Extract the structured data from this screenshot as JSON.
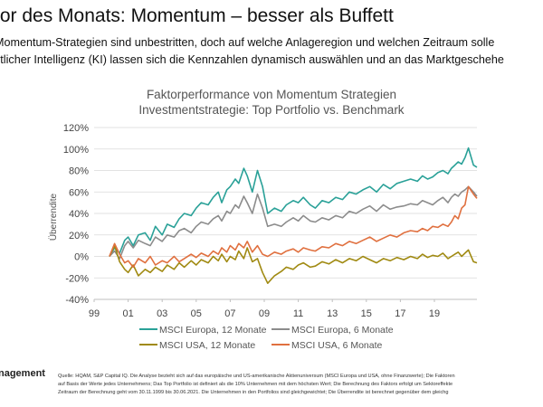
{
  "header": {
    "headline": "tor des Monats: Momentum – besser als Buffett",
    "intro_line1": "Momentum-Strategien sind unbestritten, doch auf welche Anlageregion und welchen Zeitraum solle",
    "intro_line2": "stlicher Intelligenz (KI) lassen sich die Kennzahlen dynamisch auswählen und an das Marktgeschehe"
  },
  "footer": {
    "brand": "nagement",
    "note_line1": "Quelle: HQAM, S&P Capital IQ. Die Analyse bezieht sich auf das europäische und US-amerikanische Aktienuniversum (MSCI Europa und USA, ohne Finanzwerte); Die Faktoren",
    "note_line2": "auf Basis der Werte jedes Unternehmens; Das Top Portfolio ist definiert als die 10% Unternehmen mit dem höchsten Wert; Die Berechnung des Faktors erfolgt um Sektoreffekte",
    "note_line3": "Zeitraum der Berechnung geht vom 30.11.1999 bis 30.06.2021. Die Unternehmen in den Portfolios sind gleichgewichtet; Die Überrendite ist berechnet gegenüber dem gleichg"
  },
  "chart_data": {
    "type": "line",
    "title": "Faktorperformance von Momentum Strategien",
    "subtitle": "Investmentstrategie: Top Portfolio vs. Benchmark",
    "xlabel": "",
    "ylabel": "Überrendite",
    "xlim": [
      1999.0,
      2021.5
    ],
    "ylim": [
      -40,
      120
    ],
    "y_ticks": [
      -40,
      -20,
      0,
      20,
      40,
      60,
      80,
      100,
      120
    ],
    "y_tick_labels": [
      "-40%",
      "-20%",
      "0%",
      "20%",
      "40%",
      "60%",
      "80%",
      "100%",
      "120%"
    ],
    "x_ticks": [
      1999,
      2001,
      2003,
      2005,
      2007,
      2009,
      2011,
      2013,
      2015,
      2017,
      2019
    ],
    "x_tick_labels": [
      "99",
      "01",
      "03",
      "05",
      "07",
      "09",
      "11",
      "13",
      "15",
      "17",
      "19"
    ],
    "grid": true,
    "legend_position": "bottom",
    "series": [
      {
        "name": "MSCI Europa, 12 Monate",
        "color": "#2aa198",
        "x": [
          1999.9,
          2000.2,
          2000.5,
          2000.8,
          2001.0,
          2001.3,
          2001.6,
          2002.0,
          2002.3,
          2002.6,
          2003.0,
          2003.3,
          2003.7,
          2004.0,
          2004.3,
          2004.7,
          2005.0,
          2005.3,
          2005.7,
          2006.0,
          2006.3,
          2006.5,
          2006.8,
          2007.0,
          2007.3,
          2007.5,
          2007.8,
          2008.0,
          2008.3,
          2008.6,
          2008.9,
          2009.2,
          2009.6,
          2010.0,
          2010.3,
          2010.7,
          2011.0,
          2011.3,
          2011.7,
          2012.0,
          2012.4,
          2012.8,
          2013.2,
          2013.6,
          2014.0,
          2014.4,
          2014.8,
          2015.2,
          2015.6,
          2016.0,
          2016.4,
          2016.8,
          2017.2,
          2017.6,
          2018.0,
          2018.3,
          2018.6,
          2018.9,
          2019.2,
          2019.5,
          2019.8,
          2020.0,
          2020.2,
          2020.4,
          2020.6,
          2020.8,
          2021.0,
          2021.3,
          2021.5
        ],
        "values": [
          0,
          8,
          3,
          15,
          18,
          10,
          20,
          22,
          15,
          28,
          20,
          30,
          27,
          35,
          40,
          38,
          45,
          50,
          48,
          55,
          60,
          50,
          62,
          65,
          72,
          68,
          82,
          75,
          60,
          80,
          65,
          40,
          45,
          42,
          48,
          52,
          50,
          55,
          48,
          45,
          52,
          50,
          55,
          53,
          60,
          58,
          62,
          65,
          60,
          67,
          63,
          68,
          70,
          72,
          70,
          75,
          72,
          74,
          78,
          80,
          77,
          82,
          85,
          88,
          86,
          92,
          101,
          85,
          83
        ]
      },
      {
        "name": "MSCI Europa, 6 Monate",
        "color": "#8c8c8c",
        "x": [
          1999.9,
          2000.2,
          2000.5,
          2000.8,
          2001.0,
          2001.3,
          2001.6,
          2002.0,
          2002.3,
          2002.6,
          2003.0,
          2003.3,
          2003.7,
          2004.0,
          2004.3,
          2004.7,
          2005.0,
          2005.3,
          2005.7,
          2006.0,
          2006.3,
          2006.5,
          2006.8,
          2007.0,
          2007.3,
          2007.5,
          2007.8,
          2008.0,
          2008.3,
          2008.6,
          2008.9,
          2009.2,
          2009.6,
          2010.0,
          2010.3,
          2010.7,
          2011.0,
          2011.3,
          2011.7,
          2012.0,
          2012.4,
          2012.8,
          2013.2,
          2013.6,
          2014.0,
          2014.4,
          2014.8,
          2015.2,
          2015.6,
          2016.0,
          2016.4,
          2016.8,
          2017.2,
          2017.6,
          2018.0,
          2018.3,
          2018.6,
          2018.9,
          2019.2,
          2019.5,
          2019.8,
          2020.0,
          2020.2,
          2020.4,
          2020.6,
          2020.8,
          2021.0,
          2021.3,
          2021.5
        ],
        "values": [
          0,
          5,
          -2,
          10,
          14,
          8,
          15,
          12,
          10,
          18,
          14,
          20,
          18,
          24,
          26,
          22,
          28,
          32,
          30,
          35,
          38,
          33,
          42,
          40,
          48,
          45,
          56,
          50,
          40,
          58,
          45,
          28,
          30,
          28,
          32,
          36,
          33,
          38,
          33,
          32,
          36,
          34,
          38,
          36,
          42,
          40,
          44,
          47,
          42,
          48,
          44,
          46,
          47,
          49,
          48,
          52,
          50,
          48,
          52,
          55,
          50,
          55,
          58,
          56,
          60,
          62,
          65,
          60,
          56
        ]
      },
      {
        "name": "MSCI USA, 12 Monate",
        "color": "#a08a12",
        "x": [
          1999.9,
          2000.2,
          2000.5,
          2000.8,
          2001.0,
          2001.3,
          2001.6,
          2002.0,
          2002.3,
          2002.6,
          2003.0,
          2003.3,
          2003.7,
          2004.0,
          2004.3,
          2004.7,
          2005.0,
          2005.3,
          2005.7,
          2006.0,
          2006.3,
          2006.5,
          2006.8,
          2007.0,
          2007.3,
          2007.5,
          2007.8,
          2008.0,
          2008.3,
          2008.6,
          2008.9,
          2009.2,
          2009.6,
          2010.0,
          2010.3,
          2010.7,
          2011.0,
          2011.3,
          2011.7,
          2012.0,
          2012.4,
          2012.8,
          2013.2,
          2013.6,
          2014.0,
          2014.4,
          2014.8,
          2015.2,
          2015.6,
          2016.0,
          2016.4,
          2016.8,
          2017.2,
          2017.6,
          2018.0,
          2018.3,
          2018.6,
          2018.9,
          2019.2,
          2019.5,
          2019.8,
          2020.0,
          2020.2,
          2020.4,
          2020.6,
          2020.8,
          2021.0,
          2021.3,
          2021.5
        ],
        "values": [
          0,
          10,
          -5,
          -12,
          -15,
          -8,
          -18,
          -12,
          -15,
          -10,
          -14,
          -8,
          -12,
          -6,
          -10,
          -4,
          -8,
          -3,
          -6,
          0,
          -4,
          2,
          -5,
          0,
          -3,
          5,
          -2,
          8,
          -5,
          -2,
          -15,
          -25,
          -18,
          -14,
          -10,
          -12,
          -8,
          -6,
          -10,
          -9,
          -5,
          -7,
          -3,
          -6,
          -2,
          -4,
          0,
          -3,
          -6,
          -2,
          -4,
          -1,
          -3,
          0,
          -2,
          2,
          -1,
          1,
          0,
          3,
          -2,
          0,
          2,
          4,
          0,
          3,
          6,
          -5,
          -6
        ]
      },
      {
        "name": "MSCI USA, 6 Monate",
        "color": "#e0703f",
        "x": [
          1999.9,
          2000.2,
          2000.5,
          2000.8,
          2001.0,
          2001.3,
          2001.6,
          2002.0,
          2002.3,
          2002.6,
          2003.0,
          2003.3,
          2003.7,
          2004.0,
          2004.3,
          2004.7,
          2005.0,
          2005.3,
          2005.7,
          2006.0,
          2006.3,
          2006.5,
          2006.8,
          2007.0,
          2007.3,
          2007.5,
          2007.8,
          2008.0,
          2008.3,
          2008.6,
          2008.9,
          2009.2,
          2009.6,
          2010.0,
          2010.3,
          2010.7,
          2011.0,
          2011.3,
          2011.7,
          2012.0,
          2012.4,
          2012.8,
          2013.2,
          2013.6,
          2014.0,
          2014.4,
          2014.8,
          2015.2,
          2015.6,
          2016.0,
          2016.4,
          2016.8,
          2017.2,
          2017.6,
          2018.0,
          2018.3,
          2018.6,
          2018.9,
          2019.2,
          2019.5,
          2019.8,
          2020.0,
          2020.2,
          2020.4,
          2020.6,
          2020.8,
          2021.0,
          2021.3,
          2021.5
        ],
        "values": [
          0,
          12,
          2,
          -6,
          -4,
          -10,
          -2,
          -6,
          0,
          -8,
          -4,
          -6,
          0,
          -5,
          -2,
          2,
          -1,
          3,
          0,
          5,
          2,
          8,
          4,
          10,
          6,
          12,
          8,
          14,
          4,
          10,
          2,
          0,
          4,
          2,
          5,
          7,
          4,
          8,
          6,
          5,
          9,
          8,
          12,
          10,
          14,
          12,
          15,
          18,
          14,
          17,
          20,
          18,
          22,
          24,
          23,
          26,
          24,
          28,
          27,
          30,
          28,
          32,
          38,
          35,
          45,
          48,
          65,
          58,
          54
        ]
      }
    ]
  }
}
